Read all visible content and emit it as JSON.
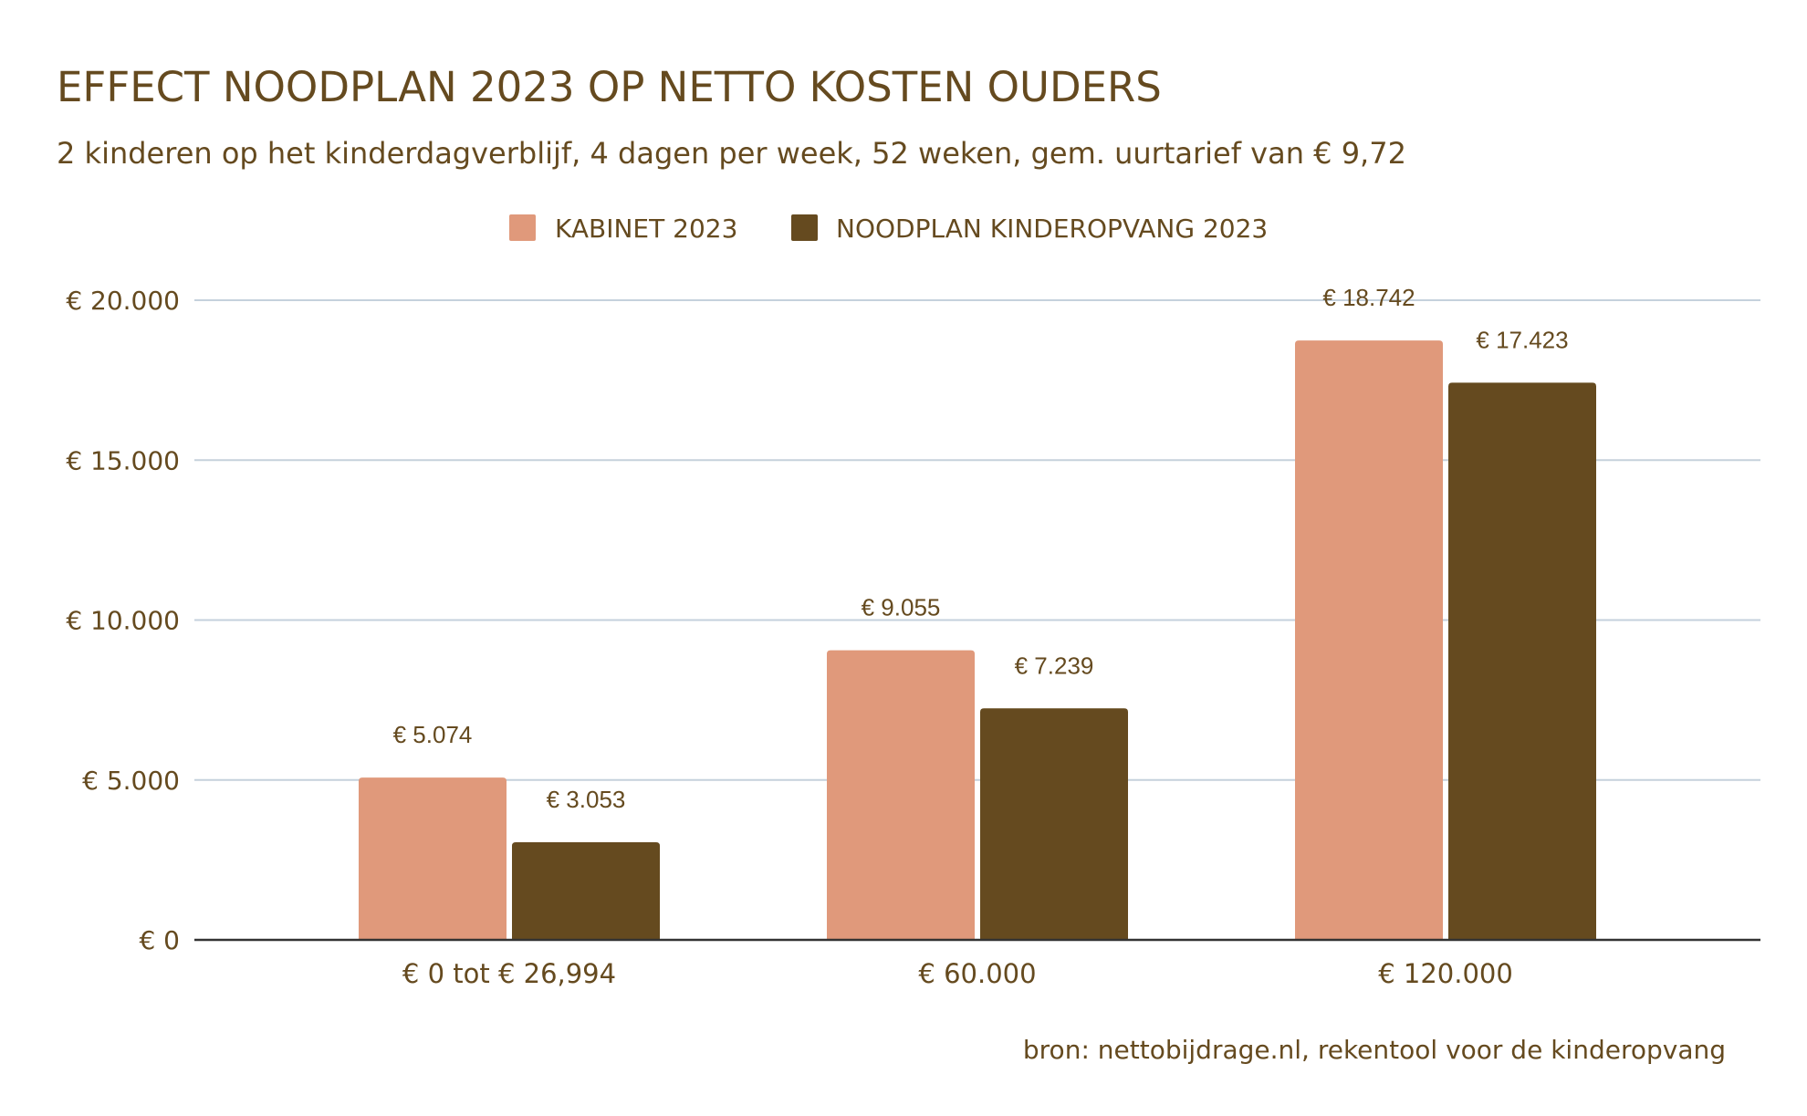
{
  "chart_data": {
    "type": "bar",
    "title": "EFFECT NOODPLAN 2023 OP NETTO KOSTEN OUDERS",
    "subtitle": "2 kinderen op het kinderdagverblijf, 4 dagen per week, 52 weken, gem. uurtarief van € 9,72",
    "categories": [
      "€ 0  tot € 26,994",
      "€ 60.000",
      "€ 120.000"
    ],
    "series": [
      {
        "name": "KABINET 2023",
        "color": "#E0997B",
        "values": [
          5074,
          9055,
          18742
        ],
        "labels": [
          "€ 5.074",
          "€ 9.055",
          "€ 18.742"
        ]
      },
      {
        "name": "NOODPLAN KINDEROPVANG 2023",
        "color": "#654A1F",
        "values": [
          3053,
          7239,
          17423
        ],
        "labels": [
          "€ 3.053",
          "€ 7.239",
          "€ 17.423"
        ]
      }
    ],
    "yticks": [
      0,
      5000,
      10000,
      15000,
      20000
    ],
    "ytick_labels": [
      "€ 0",
      "€ 5.000",
      "€ 10.000",
      "€ 15.000",
      "€ 20.000"
    ],
    "ylim": [
      0,
      20000
    ],
    "xlabel": "",
    "ylabel": "",
    "grid": true,
    "legend_position": "top-center",
    "source": "bron: nettobijdrage.nl, rekentool voor de kinderopvang"
  }
}
